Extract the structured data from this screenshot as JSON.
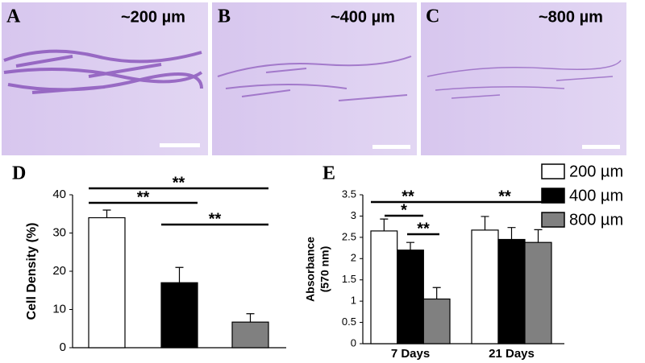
{
  "panels": [
    {
      "letter": "A",
      "label": "~200 µm"
    },
    {
      "letter": "B",
      "label": "~400 µm"
    },
    {
      "letter": "C",
      "label": "~800 µm"
    }
  ],
  "chart_data": [
    {
      "type": "bar",
      "panel": "D",
      "ylabel": "Cell Density (%)",
      "categories": [
        null,
        null,
        null
      ],
      "values": [
        34,
        17,
        6.7
      ],
      "errors": [
        2,
        4,
        2.2
      ],
      "colors": [
        "#ffffff",
        "#000000",
        "#808080"
      ],
      "ylim": [
        0,
        40
      ],
      "yticks": [
        0,
        10,
        20,
        30,
        40
      ],
      "annotations": [
        "**",
        "**",
        "**"
      ]
    },
    {
      "type": "bar",
      "panel": "E",
      "ylabel": [
        "Absorbance",
        "(570 nm)"
      ],
      "categories": [
        "7 Days",
        "21 Days"
      ],
      "series": [
        {
          "name": "200 µm",
          "color": "#ffffff",
          "values": [
            2.65,
            2.67
          ],
          "errors": [
            0.28,
            0.32
          ]
        },
        {
          "name": "400 µm",
          "color": "#000000",
          "values": [
            2.2,
            2.45
          ],
          "errors": [
            0.18,
            0.28
          ]
        },
        {
          "name": "800 µm",
          "color": "#808080",
          "values": [
            1.05,
            2.38
          ],
          "errors": [
            0.27,
            0.3
          ]
        }
      ],
      "ylim": [
        0,
        3.5
      ],
      "yticks": [
        0,
        0.5,
        1,
        1.5,
        2,
        2.5,
        3,
        3.5
      ],
      "legend": "top-right",
      "annotations": [
        "**",
        "*",
        "**",
        "**"
      ]
    }
  ]
}
